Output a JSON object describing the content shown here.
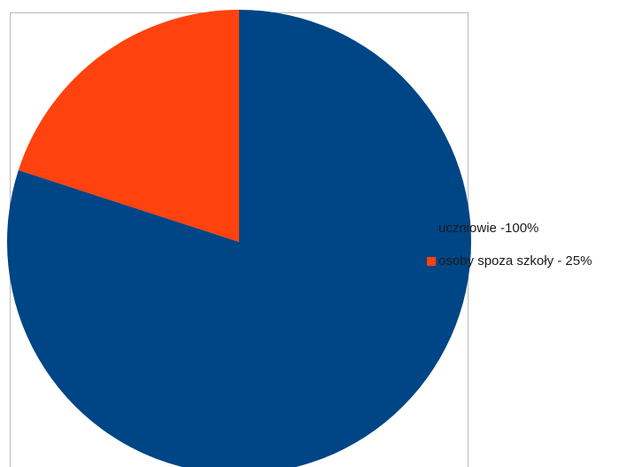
{
  "chart_data": {
    "type": "pie",
    "title": "",
    "series": [
      {
        "categories": [
          "uczniowie -100%",
          "osoby spoza szkoły - 25%"
        ],
        "values": [
          100,
          25
        ],
        "colors": [
          "#004586",
          "#ff420e"
        ]
      }
    ],
    "legend": {
      "placement": "right",
      "entries": [
        "uczniowie -100%",
        "osoby spoza szkoły - 25%"
      ]
    }
  }
}
